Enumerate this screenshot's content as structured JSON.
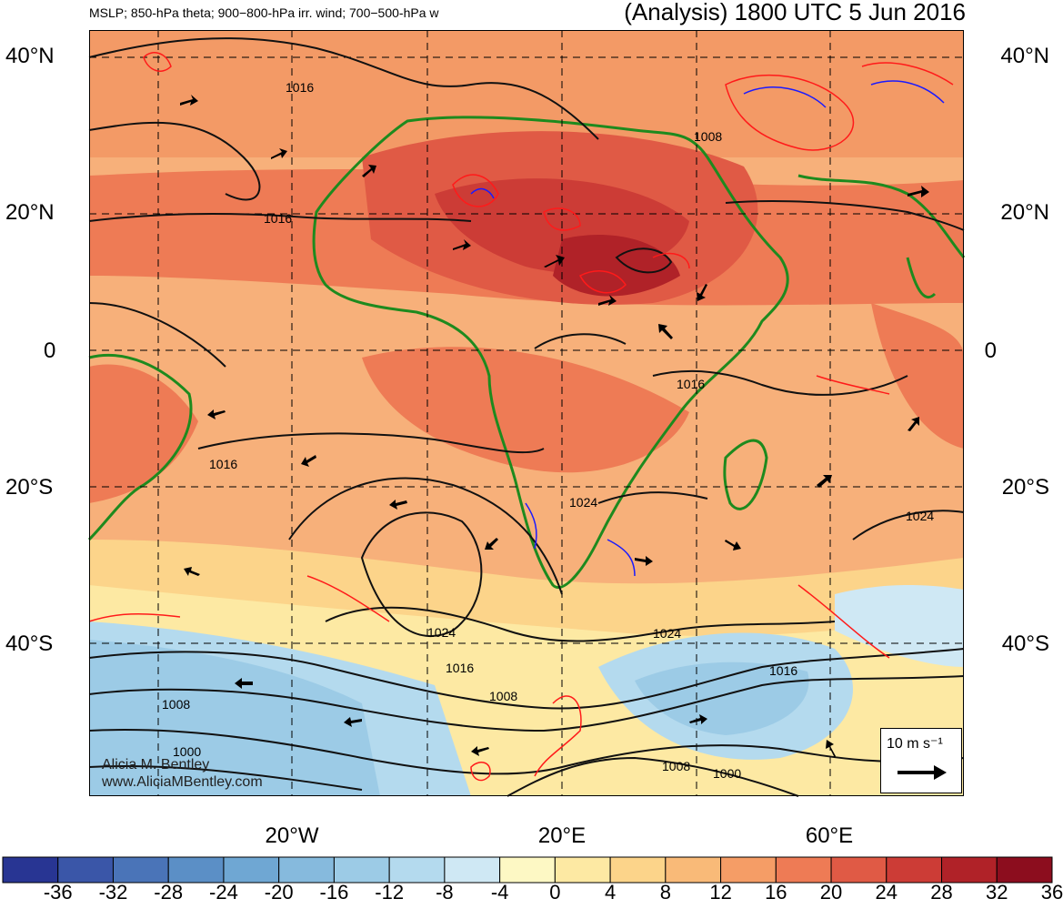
{
  "header": {
    "left_title": "MSLP; 850-hPa theta; 900−800-hPa irr. wind; 700−500-hPa w",
    "right_title": "(Analysis) 1800 UTC 5 Jun 2016"
  },
  "lat_labels": [
    "40°N",
    "20°N",
    "0",
    "20°S",
    "40°S"
  ],
  "lon_labels": [
    "20°W",
    "20°E",
    "60°E"
  ],
  "isobar_labels": [
    "1016",
    "1008",
    "1016",
    "1016",
    "1016",
    "1024",
    "1024",
    "1024",
    "1016",
    "1008",
    "1008",
    "1000",
    "1024",
    "1016",
    "1008",
    "1000"
  ],
  "colorbar": {
    "labels": [
      "-36",
      "-32",
      "-28",
      "-24",
      "-20",
      "-16",
      "-12",
      "-8",
      "-4",
      "0",
      "4",
      "8",
      "12",
      "16",
      "20",
      "24",
      "28",
      "32",
      "36"
    ],
    "colors": [
      "#283593",
      "#3a56a8",
      "#4a74b8",
      "#5b8fc6",
      "#6fa7d3",
      "#86badd",
      "#9ccbe6",
      "#b4daee",
      "#cfe8f4",
      "#fdf8c4",
      "#fde9a3",
      "#fcd48a",
      "#f9ba78",
      "#f59d66",
      "#ee7b55",
      "#e05a45",
      "#cc3c36",
      "#b02228",
      "#8c0d1e"
    ]
  },
  "credit": {
    "line1": "Alicia M. Bentley",
    "line2": "www.AliciaMBentley.com"
  },
  "reference_vector": {
    "label": "10 m s⁻¹"
  },
  "colors": {
    "contour": "#111111",
    "coast": "#1e8a1e",
    "ascent": "#1a1aff",
    "descent": "#ff1a1a"
  }
}
